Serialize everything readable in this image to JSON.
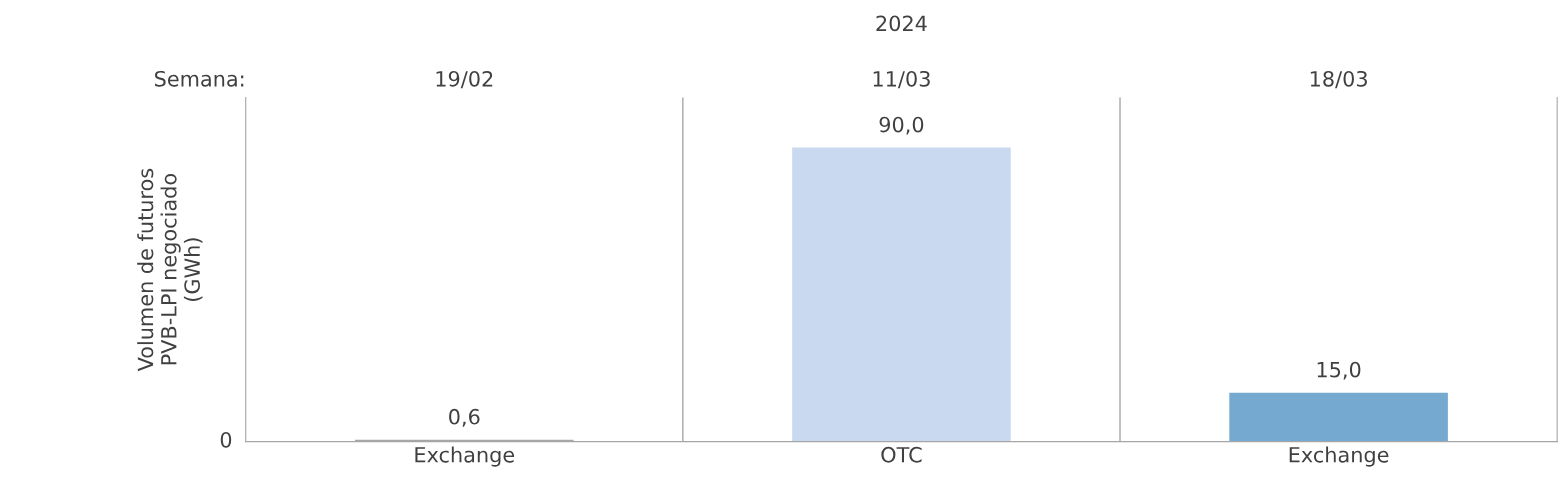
{
  "chart_data": {
    "type": "bar",
    "title": "2024",
    "categories": [
      "Exchange",
      "OTC",
      "Exchange"
    ],
    "values": [
      0.6,
      90.0,
      15.0
    ],
    "colors": [
      "#a6a6a6",
      "#c9daf0",
      "#75a9d0"
    ],
    "value_labels": [
      "0,6",
      "90,0",
      "15,0"
    ],
    "ylabel": "Volumen de futuros\nPVB-LPI negociado\n(GWh)",
    "annotations": [
      "Semana:",
      "19/02",
      "11/03",
      "18/03",
      "0"
    ],
    "grid": false,
    "legend": false
  }
}
